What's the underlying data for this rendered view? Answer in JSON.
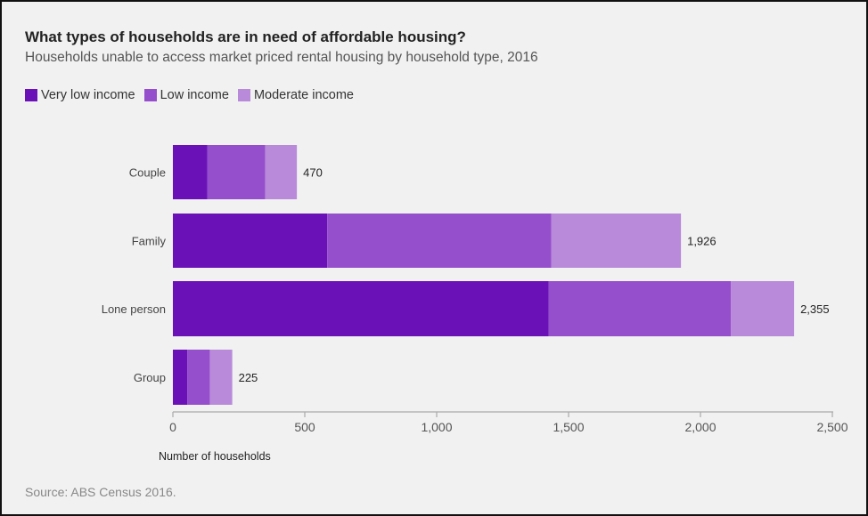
{
  "header": {
    "title": "What types of households are in need of affordable housing?",
    "subtitle": "Households unable to access market priced rental housing by household type, 2016"
  },
  "footer": {
    "source": "Source: ABS Census 2016."
  },
  "colors": {
    "very_low": "#6a12b8",
    "low": "#964fcc",
    "moderate": "#b98ada",
    "axis": "#aaaaaa",
    "text": "#333333",
    "background": "#f1f1f1"
  },
  "chart_data": {
    "type": "bar",
    "orientation": "horizontal",
    "stacked": true,
    "title": "What types of households are in need of affordable housing?",
    "subtitle": "Households unable to access market priced rental housing by household type, 2016",
    "categories": [
      "Couple",
      "Family",
      "Lone person",
      "Group"
    ],
    "series": [
      {
        "name": "Very low income",
        "color": "#6a12b8",
        "values": [
          130,
          585,
          1425,
          55
        ]
      },
      {
        "name": "Low income",
        "color": "#964fcc",
        "values": [
          220,
          850,
          690,
          85
        ]
      },
      {
        "name": "Moderate income",
        "color": "#b98ada",
        "values": [
          120,
          491,
          240,
          85
        ]
      }
    ],
    "totals": [
      470,
      1926,
      2355,
      225
    ],
    "total_labels": [
      "470",
      "1,926",
      "2,355",
      "225"
    ],
    "xlabel": "Number of households",
    "ylabel": "",
    "xlim": [
      0,
      2500
    ],
    "xticks": [
      0,
      500,
      1000,
      1500,
      2000,
      2500
    ],
    "xtick_labels": [
      "0",
      "500",
      "1,000",
      "1,500",
      "2,000",
      "2,500"
    ],
    "legend": "top-left",
    "grid": false
  }
}
